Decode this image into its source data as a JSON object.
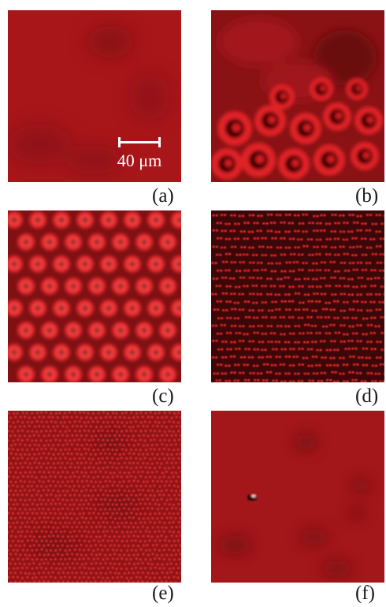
{
  "figure": {
    "panels": [
      {
        "id": "a",
        "label": "(a)"
      },
      {
        "id": "b",
        "label": "(b)"
      },
      {
        "id": "c",
        "label": "(c)"
      },
      {
        "id": "d",
        "label": "(d)"
      },
      {
        "id": "e",
        "label": "(e)"
      },
      {
        "id": "f",
        "label": "(f)"
      }
    ],
    "scale_bar": {
      "label": "40 μm"
    },
    "colors": {
      "base_red": "#b0161a",
      "dark_red": "#6e0e10",
      "bright_red": "#ff2a2a",
      "label_text": "#1a1a1a"
    }
  }
}
